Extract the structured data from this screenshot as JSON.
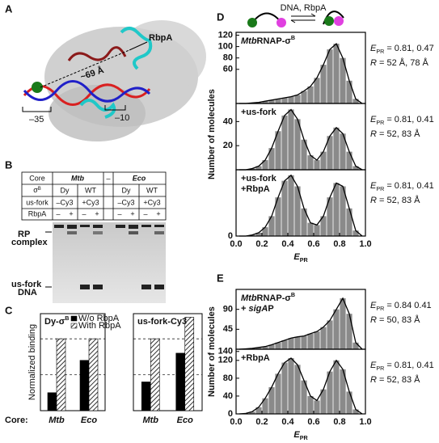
{
  "panel_labels": [
    "A",
    "B",
    "C",
    "D",
    "E"
  ],
  "panel_a": {
    "rbpa": "RbpA",
    "distance": "~69 Å",
    "minus35": "–35",
    "minus10": "–10"
  },
  "panel_b": {
    "core": [
      "Core",
      "Mtb",
      "–",
      "Eco"
    ],
    "sigma": {
      "label": "σ",
      "sup": "B",
      "cells": [
        "Dy",
        "WT",
        "Dy",
        "WT"
      ]
    },
    "usfork": {
      "label": "us-fork",
      "cells": [
        "–Cy3",
        "+Cy3",
        "–Cy3",
        "+Cy3"
      ]
    },
    "rbpa": {
      "label": "RbpA",
      "cells": [
        "–",
        "+",
        "–",
        "+",
        "–",
        "+",
        "–",
        "+"
      ]
    },
    "rp_complex": [
      "RP",
      "complex"
    ],
    "usfork_dna": [
      "us-fork",
      "DNA"
    ]
  },
  "core_label": "Core:",
  "schematic": "DNA, RbpA",
  "chart_data": [
    {
      "type": "bar",
      "title": [
        {
          "t": "Dy-σ"
        },
        {
          "t": "B",
          "s": "sup"
        }
      ],
      "ylabel": "Normalized binding",
      "categories": [
        "Mtb",
        "Eco"
      ],
      "series": [
        {
          "name": "W/o RbpA",
          "color": "#000000",
          "values": [
            0.25,
            0.7
          ]
        },
        {
          "name": "With RbpA",
          "color": "#555555",
          "hatch": true,
          "values": [
            1.0,
            1.0
          ]
        }
      ],
      "ylim": [
        0,
        1.35
      ],
      "hlines": [
        0.5,
        1.0
      ],
      "legend": "top-right"
    },
    {
      "type": "bar",
      "title": [
        {
          "t": "us-fork-Cy3"
        }
      ],
      "categories": [
        "Mtb",
        "Eco"
      ],
      "series": [
        {
          "color": "#000000",
          "values": [
            0.4,
            0.8
          ]
        },
        {
          "color": "#555555",
          "hatch": true,
          "values": [
            1.0,
            1.3
          ]
        }
      ],
      "ylim": [
        0,
        1.35
      ],
      "hlines": [
        0.5,
        1.0
      ],
      "legend": "none"
    },
    {
      "type": "histogram",
      "xlabel": [
        {
          "t": "E",
          "s": "i"
        },
        {
          "t": "PR",
          "s": "sub"
        }
      ],
      "ylabel": "Number of molecules",
      "bins": [
        0,
        0.05,
        0.1,
        0.15,
        0.2,
        0.25,
        0.3,
        0.35,
        0.4,
        0.45,
        0.5,
        0.55,
        0.6,
        0.65,
        0.7,
        0.75,
        0.8,
        0.85,
        0.9,
        0.95,
        1.0
      ],
      "xlim": [
        0,
        1
      ],
      "xticks": [
        {
          "value": 0,
          "label": "0.0"
        },
        0.2,
        0.4,
        0.6,
        0.8,
        {
          "value": 1,
          "label": "1.0"
        }
      ],
      "color": "#8a8a8a",
      "panels": [
        {
          "label": [
            [
              {
                "t": "Mtb",
                "s": "i"
              },
              {
                "t": "RNAP-σ"
              },
              {
                "t": "B",
                "s": "sup"
              }
            ]
          ],
          "ylim": [
            0,
            125
          ],
          "yticks": [
            60,
            80,
            100,
            120
          ],
          "values": [
            0,
            0,
            1,
            2,
            4,
            6,
            8,
            10,
            12,
            15,
            22,
            30,
            45,
            68,
            95,
            105,
            80,
            40,
            8,
            0
          ],
          "note": [
            [
              {
                "t": "E",
                "s": "i"
              },
              {
                "t": "PR",
                "s": "sub"
              },
              {
                "t": " = 0.81, 0.47"
              }
            ],
            [
              {
                "t": "R",
                "s": "i"
              },
              {
                "t": " = 52 Å, 78 Å"
              }
            ]
          ]
        },
        {
          "label": [
            [
              {
                "t": "+us-fork"
              }
            ]
          ],
          "ylim": [
            0,
            55
          ],
          "yticks": [
            20,
            40
          ],
          "values": [
            0,
            0,
            1,
            3,
            8,
            18,
            32,
            45,
            50,
            42,
            25,
            12,
            8,
            15,
            28,
            35,
            30,
            15,
            3,
            0
          ],
          "note": [
            [
              {
                "t": "E",
                "s": "i"
              },
              {
                "t": "PR",
                "s": "sub"
              },
              {
                "t": " = 0.81, 0.41"
              }
            ],
            [
              {
                "t": "R",
                "s": "i"
              },
              {
                "t": " = 52, 83 Å"
              }
            ]
          ]
        },
        {
          "label": [
            [
              {
                "t": "+us-fork"
              }
            ],
            [
              {
                "t": "+RbpA"
              }
            ]
          ],
          "ylim": [
            0,
            60
          ],
          "yticks": [
            0
          ],
          "values": [
            0,
            0,
            1,
            3,
            8,
            18,
            35,
            50,
            55,
            45,
            25,
            12,
            10,
            18,
            35,
            48,
            45,
            25,
            5,
            0
          ],
          "note": [
            [
              {
                "t": "E",
                "s": "i"
              },
              {
                "t": "PR",
                "s": "sub"
              },
              {
                "t": " = 0.81, 0.41"
              }
            ],
            [
              {
                "t": "R",
                "s": "i"
              },
              {
                "t": " = 52, 83 Å"
              }
            ]
          ]
        }
      ]
    },
    {
      "type": "histogram",
      "xlabel": [
        {
          "t": "E",
          "s": "i"
        },
        {
          "t": "PR",
          "s": "sub"
        }
      ],
      "ylabel": "Number of molecules",
      "bins": [
        0,
        0.05,
        0.1,
        0.15,
        0.2,
        0.25,
        0.3,
        0.35,
        0.4,
        0.45,
        0.5,
        0.55,
        0.6,
        0.65,
        0.7,
        0.75,
        0.8,
        0.85,
        0.9,
        0.95,
        1.0
      ],
      "xlim": [
        0,
        1
      ],
      "xticks": [
        {
          "value": 0,
          "label": "0.0"
        },
        0.2,
        0.4,
        0.6,
        0.8,
        {
          "value": 1,
          "label": "1.0"
        }
      ],
      "color": "#8a8a8a",
      "panels": [
        {
          "label": [
            [
              {
                "t": "Mtb",
                "s": "i"
              },
              {
                "t": "RNAP-σ"
              },
              {
                "t": "B",
                "s": "sup"
              }
            ],
            [
              {
                "t": "+ "
              },
              {
                "t": "sigA",
                "s": "i"
              },
              {
                "t": "P"
              }
            ]
          ],
          "ylim": [
            0,
            135
          ],
          "yticks": [
            45,
            90
          ],
          "values": [
            0,
            1,
            2,
            4,
            6,
            10,
            15,
            20,
            25,
            28,
            30,
            35,
            40,
            50,
            65,
            90,
            115,
            80,
            15,
            0
          ],
          "note": [
            [
              {
                "t": "E",
                "s": "i"
              },
              {
                "t": "PR",
                "s": "sub"
              },
              {
                "t": " = 0.84 0.41"
              }
            ],
            [
              {
                "t": "R",
                "s": "i"
              },
              {
                "t": " = 50, 83 Å"
              }
            ]
          ]
        },
        {
          "label": [
            [
              {
                "t": "+RbpA"
              }
            ]
          ],
          "ylim": [
            0,
            145
          ],
          "yticks": [
            0,
            40,
            80,
            120,
            140
          ],
          "values": [
            0,
            1,
            5,
            15,
            35,
            60,
            90,
            115,
            125,
            110,
            75,
            40,
            30,
            55,
            95,
            120,
            100,
            50,
            10,
            0
          ],
          "note": [
            [
              {
                "t": "E",
                "s": "i"
              },
              {
                "t": "PR",
                "s": "sub"
              },
              {
                "t": " = 0.81, 0.41"
              }
            ],
            [
              {
                "t": "R",
                "s": "i"
              },
              {
                "t": " = 52, 83 Å"
              }
            ]
          ]
        }
      ]
    }
  ]
}
